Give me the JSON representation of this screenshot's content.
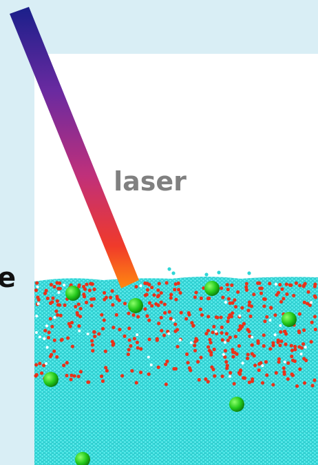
{
  "labels": {
    "beam": "laser",
    "side": "e"
  }
}
